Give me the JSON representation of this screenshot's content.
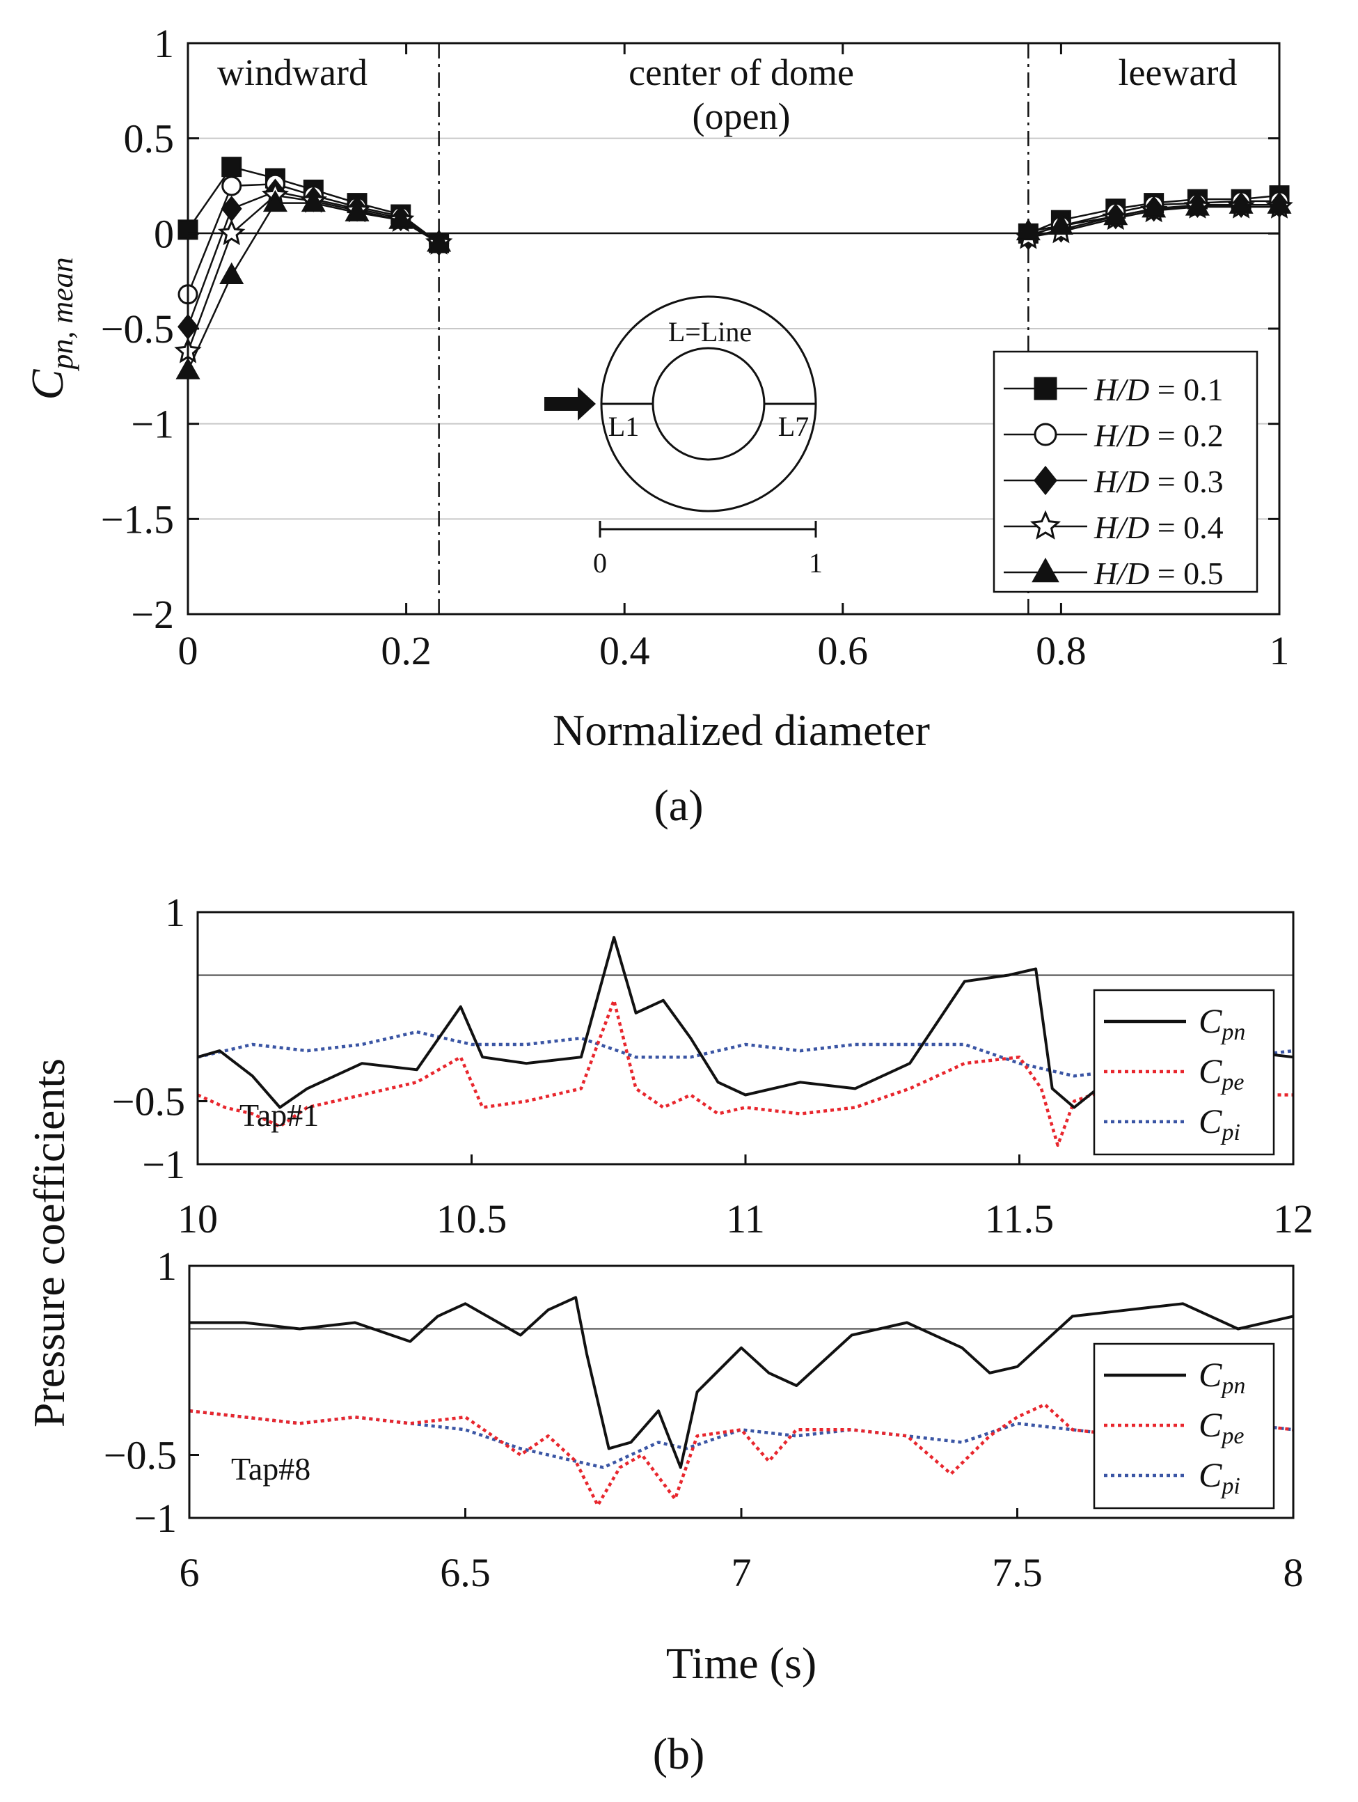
{
  "chart_data": [
    {
      "type": "line",
      "caption": "(a)",
      "xlabel": "Normalized diameter",
      "ylabel": "C",
      "ylabel_sub": "pn, mean",
      "xlim": [
        0,
        1
      ],
      "ylim": [
        -2,
        1
      ],
      "xticks": [
        "0",
        "0.2",
        "0.4",
        "0.6",
        "0.8",
        "1"
      ],
      "yticks": [
        "−2",
        "−1.5",
        "−1",
        "−0.5",
        "0",
        "0.5",
        "1"
      ],
      "grid": "horizontal",
      "regions": [
        {
          "label": "windward",
          "x": 0.12
        },
        {
          "label": "center of dome",
          "x": 0.5
        },
        {
          "label": "(open)",
          "x": 0.5
        },
        {
          "label": "leeward",
          "x": 0.89
        }
      ],
      "dividers": [
        0.23,
        0.77
      ],
      "legend_position": "lower-right",
      "inset": {
        "top_label": "L=Line",
        "left_label": "L1",
        "right_label": "L7",
        "scale_start": "0",
        "scale_end": "1"
      },
      "series": [
        {
          "name": "H/D = 0.1",
          "name_prefix": "H/D",
          "name_value": " = 0.1",
          "marker": "square",
          "filled": true,
          "windward_x": [
            0,
            0.04,
            0.08,
            0.115,
            0.155,
            0.195,
            0.23
          ],
          "windward_y": [
            0.02,
            0.35,
            0.29,
            0.23,
            0.16,
            0.1,
            -0.05
          ],
          "leeward_x": [
            0.77,
            0.8,
            0.85,
            0.885,
            0.925,
            0.965,
            1.0
          ],
          "leeward_y": [
            0.0,
            0.07,
            0.13,
            0.16,
            0.18,
            0.18,
            0.2
          ]
        },
        {
          "name": "H/D = 0.2",
          "name_prefix": "H/D",
          "name_value": " = 0.2",
          "marker": "circle",
          "filled": false,
          "windward_x": [
            0,
            0.04,
            0.08,
            0.115,
            0.155,
            0.195,
            0.23
          ],
          "windward_y": [
            -0.32,
            0.25,
            0.26,
            0.2,
            0.14,
            0.09,
            -0.05
          ],
          "leeward_x": [
            0.77,
            0.8,
            0.85,
            0.885,
            0.925,
            0.965,
            1.0
          ],
          "leeward_y": [
            -0.01,
            0.04,
            0.11,
            0.15,
            0.16,
            0.17,
            0.17
          ]
        },
        {
          "name": "H/D = 0.3",
          "name_prefix": "H/D",
          "name_value": " = 0.3",
          "marker": "diamond",
          "filled": true,
          "windward_x": [
            0,
            0.04,
            0.08,
            0.115,
            0.155,
            0.195,
            0.23
          ],
          "windward_y": [
            -0.49,
            0.13,
            0.22,
            0.18,
            0.13,
            0.08,
            -0.05
          ],
          "leeward_x": [
            0.77,
            0.8,
            0.85,
            0.885,
            0.925,
            0.965,
            1.0
          ],
          "leeward_y": [
            -0.02,
            0.02,
            0.09,
            0.13,
            0.15,
            0.15,
            0.15
          ]
        },
        {
          "name": "H/D = 0.4",
          "name_prefix": "H/D",
          "name_value": " = 0.4",
          "marker": "star",
          "filled": false,
          "windward_x": [
            0,
            0.04,
            0.08,
            0.115,
            0.155,
            0.195,
            0.23
          ],
          "windward_y": [
            -0.62,
            0.0,
            0.2,
            0.17,
            0.12,
            0.07,
            -0.05
          ],
          "leeward_x": [
            0.77,
            0.8,
            0.85,
            0.885,
            0.925,
            0.965,
            1.0
          ],
          "leeward_y": [
            -0.02,
            0.01,
            0.08,
            0.12,
            0.14,
            0.14,
            0.14
          ]
        },
        {
          "name": "H/D = 0.5",
          "name_prefix": "H/D",
          "name_value": " = 0.5",
          "marker": "triangle",
          "filled": true,
          "windward_x": [
            0,
            0.04,
            0.08,
            0.115,
            0.155,
            0.195,
            0.23
          ],
          "windward_y": [
            -0.72,
            -0.22,
            0.16,
            0.16,
            0.11,
            0.07,
            -0.05
          ],
          "leeward_x": [
            0.77,
            0.8,
            0.85,
            0.885,
            0.925,
            0.965,
            1.0
          ],
          "leeward_y": [
            0.01,
            0.04,
            0.09,
            0.13,
            0.14,
            0.15,
            0.15
          ]
        }
      ]
    },
    {
      "type": "line",
      "caption": "(b)",
      "xlabel": "Time (s)",
      "ylabel": "Pressure coefficients",
      "panels": [
        {
          "tap_label": "Tap#1",
          "xlim": [
            10,
            12
          ],
          "ylim": [
            -1,
            1
          ],
          "xticks": [
            "10",
            "10.5",
            "11",
            "11.5",
            "12"
          ],
          "yticks": [
            "1",
            "−0.5",
            "−1"
          ],
          "ref_line_y": 0.5,
          "legend_position": "right",
          "series": [
            {
              "name": "C",
              "sub": "pn",
              "color": "#111111",
              "style": "solid",
              "x": [
                10,
                10.04,
                10.1,
                10.15,
                10.2,
                10.3,
                10.4,
                10.48,
                10.52,
                10.6,
                10.7,
                10.76,
                10.8,
                10.85,
                10.9,
                10.95,
                11.0,
                11.1,
                11.2,
                11.3,
                11.4,
                11.48,
                11.53,
                11.56,
                11.6,
                11.7,
                11.8,
                11.9,
                12.0
              ],
              "y": [
                -0.15,
                -0.1,
                -0.3,
                -0.55,
                -0.4,
                -0.2,
                -0.25,
                0.25,
                -0.15,
                -0.2,
                -0.15,
                0.8,
                0.2,
                0.3,
                0.0,
                -0.35,
                -0.45,
                -0.35,
                -0.4,
                -0.2,
                0.45,
                0.5,
                0.55,
                -0.4,
                -0.55,
                -0.2,
                -0.25,
                -0.1,
                -0.15
              ]
            },
            {
              "name": "C",
              "sub": "pe",
              "color": "#e8262d",
              "style": "dotted",
              "x": [
                10,
                10.05,
                10.1,
                10.15,
                10.2,
                10.3,
                10.4,
                10.48,
                10.52,
                10.6,
                10.7,
                10.76,
                10.8,
                10.85,
                10.9,
                10.95,
                11.0,
                11.1,
                11.2,
                11.3,
                11.4,
                11.5,
                11.54,
                11.57,
                11.6,
                11.7,
                11.8,
                11.9,
                12.0
              ],
              "y": [
                -0.45,
                -0.55,
                -0.6,
                -0.7,
                -0.55,
                -0.45,
                -0.35,
                -0.15,
                -0.55,
                -0.5,
                -0.4,
                0.3,
                -0.4,
                -0.55,
                -0.45,
                -0.6,
                -0.55,
                -0.6,
                -0.55,
                -0.4,
                -0.2,
                -0.15,
                -0.4,
                -0.85,
                -0.5,
                -0.35,
                -0.4,
                -0.45,
                -0.45
              ]
            },
            {
              "name": "C",
              "sub": "pi",
              "color": "#3a55a4",
              "style": "dotted",
              "x": [
                10,
                10.1,
                10.2,
                10.3,
                10.4,
                10.5,
                10.6,
                10.7,
                10.8,
                10.9,
                11.0,
                11.1,
                11.2,
                11.3,
                11.4,
                11.5,
                11.6,
                11.7,
                11.8,
                11.9,
                12.0
              ],
              "y": [
                -0.15,
                -0.05,
                -0.1,
                -0.05,
                0.05,
                -0.05,
                -0.05,
                0.0,
                -0.15,
                -0.15,
                -0.05,
                -0.1,
                -0.05,
                -0.05,
                -0.05,
                -0.2,
                -0.3,
                -0.25,
                -0.2,
                -0.15,
                -0.1
              ]
            }
          ]
        },
        {
          "tap_label": "Tap#8",
          "xlim": [
            6,
            8
          ],
          "ylim": [
            -1,
            1
          ],
          "xticks": [
            "6",
            "6.5",
            "7",
            "7.5",
            "8"
          ],
          "yticks": [
            "1",
            "−0.5",
            "−1"
          ],
          "ref_line_y": 0.5,
          "legend_position": "right",
          "series": [
            {
              "name": "C",
              "sub": "pn",
              "color": "#111111",
              "style": "solid",
              "x": [
                6,
                6.1,
                6.2,
                6.3,
                6.4,
                6.45,
                6.5,
                6.6,
                6.65,
                6.7,
                6.72,
                6.76,
                6.8,
                6.85,
                6.89,
                6.92,
                7.0,
                7.05,
                7.1,
                7.2,
                7.3,
                7.4,
                7.45,
                7.5,
                7.6,
                7.7,
                7.8,
                7.9,
                8.0
              ],
              "y": [
                0.55,
                0.55,
                0.5,
                0.55,
                0.4,
                0.6,
                0.7,
                0.45,
                0.65,
                0.75,
                0.3,
                -0.45,
                -0.4,
                -0.15,
                -0.6,
                0.0,
                0.35,
                0.15,
                0.05,
                0.45,
                0.55,
                0.35,
                0.15,
                0.2,
                0.6,
                0.65,
                0.7,
                0.5,
                0.6
              ]
            },
            {
              "name": "C",
              "sub": "pe",
              "color": "#e8262d",
              "style": "dotted",
              "x": [
                6,
                6.1,
                6.2,
                6.3,
                6.4,
                6.5,
                6.6,
                6.65,
                6.7,
                6.74,
                6.78,
                6.82,
                6.88,
                6.92,
                7.0,
                7.05,
                7.1,
                7.2,
                7.3,
                7.38,
                7.45,
                7.5,
                7.55,
                7.6,
                7.7,
                7.8,
                7.9,
                8.0
              ],
              "y": [
                -0.15,
                -0.2,
                -0.25,
                -0.2,
                -0.25,
                -0.2,
                -0.5,
                -0.35,
                -0.55,
                -0.9,
                -0.6,
                -0.5,
                -0.85,
                -0.35,
                -0.3,
                -0.55,
                -0.3,
                -0.3,
                -0.35,
                -0.65,
                -0.35,
                -0.2,
                -0.1,
                -0.3,
                -0.35,
                -0.3,
                -0.25,
                -0.3
              ]
            },
            {
              "name": "C",
              "sub": "pi",
              "color": "#3a55a4",
              "style": "dotted",
              "x": [
                6,
                6.1,
                6.2,
                6.3,
                6.4,
                6.5,
                6.6,
                6.7,
                6.75,
                6.8,
                6.85,
                6.9,
                7.0,
                7.1,
                7.2,
                7.3,
                7.4,
                7.5,
                7.6,
                7.7,
                7.8,
                7.9,
                8.0
              ],
              "y": [
                -0.15,
                -0.2,
                -0.25,
                -0.2,
                -0.25,
                -0.3,
                -0.45,
                -0.55,
                -0.6,
                -0.5,
                -0.4,
                -0.45,
                -0.3,
                -0.35,
                -0.3,
                -0.35,
                -0.4,
                -0.25,
                -0.3,
                -0.35,
                -0.3,
                -0.25,
                -0.3
              ]
            }
          ]
        }
      ]
    }
  ]
}
